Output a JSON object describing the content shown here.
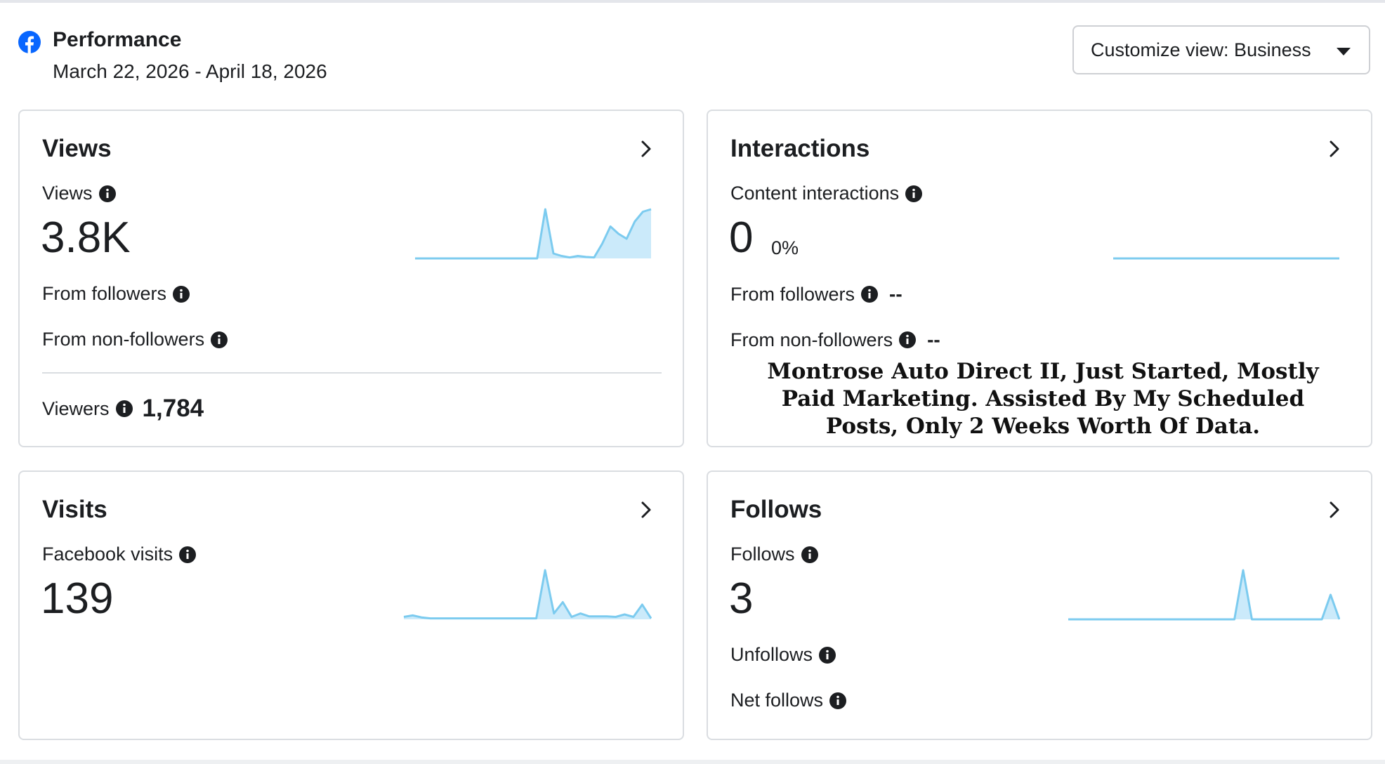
{
  "header": {
    "title": "Performance",
    "date_range": "March 22, 2026 - April 18, 2026",
    "customize_label": "Customize view: Business"
  },
  "cards": {
    "views": {
      "title": "Views",
      "metric_label": "Views",
      "value": "3.8K",
      "from_followers_label": "From followers",
      "from_non_followers_label": "From non-followers",
      "viewers_label": "Viewers",
      "viewers_value": "1,784"
    },
    "interactions": {
      "title": "Interactions",
      "metric_label": "Content interactions",
      "value": "0",
      "percent": "0%",
      "from_followers_label": "From followers",
      "from_followers_value": "--",
      "from_non_followers_label": "From non-followers",
      "from_non_followers_value": "--"
    },
    "visits": {
      "title": "Visits",
      "metric_label": "Facebook visits",
      "value": "139"
    },
    "follows": {
      "title": "Follows",
      "metric_label": "Follows",
      "value": "3",
      "unfollows_label": "Unfollows",
      "net_follows_label": "Net follows"
    }
  },
  "overlay_caption": "Montrose Auto Direct II, Just Started, Mostly Paid Marketing. Assisted By My Scheduled Posts, Only 2 Weeks Worth Of Data.",
  "icons": {
    "brand": "facebook-icon",
    "info": "info-icon",
    "chevron": "chevron-right-icon",
    "dropdown": "caret-down-icon"
  },
  "colors": {
    "facebook_blue": "#0866ff",
    "sparkline_line": "#7ccbef",
    "sparkline_fill": "#cbeafa",
    "text": "#1c1e21",
    "border": "#dadde1"
  },
  "sparklines": {
    "views": [
      0,
      0,
      0,
      0,
      0,
      0,
      0,
      0,
      0,
      0,
      0,
      0,
      0,
      0,
      0,
      0,
      1,
      0.1,
      0.05,
      0.02,
      0.05,
      0.03,
      0.02,
      0.3,
      0.65,
      0.5,
      0.4,
      0.75,
      0.95,
      1.0
    ],
    "interactions": [
      0,
      0,
      0,
      0,
      0,
      0,
      0,
      0,
      0,
      0,
      0,
      0,
      0,
      0,
      0,
      0,
      0,
      0,
      0,
      0,
      0,
      0,
      0,
      0,
      0,
      0,
      0,
      0
    ],
    "visits": [
      0.05,
      0.08,
      0.04,
      0.02,
      0.02,
      0.02,
      0.02,
      0.02,
      0.02,
      0.02,
      0.02,
      0.02,
      0.02,
      0.02,
      0.02,
      0.02,
      1.0,
      0.12,
      0.35,
      0.05,
      0.12,
      0.06,
      0.06,
      0.06,
      0.05,
      0.1,
      0.05,
      0.3,
      0.02
    ],
    "follows": [
      0,
      0,
      0,
      0,
      0,
      0,
      0,
      0,
      0,
      0,
      0,
      0,
      0,
      0,
      0,
      0,
      0,
      0,
      0,
      0,
      1,
      0,
      0,
      0,
      0,
      0,
      0,
      0,
      0,
      0,
      0.5,
      0
    ]
  }
}
